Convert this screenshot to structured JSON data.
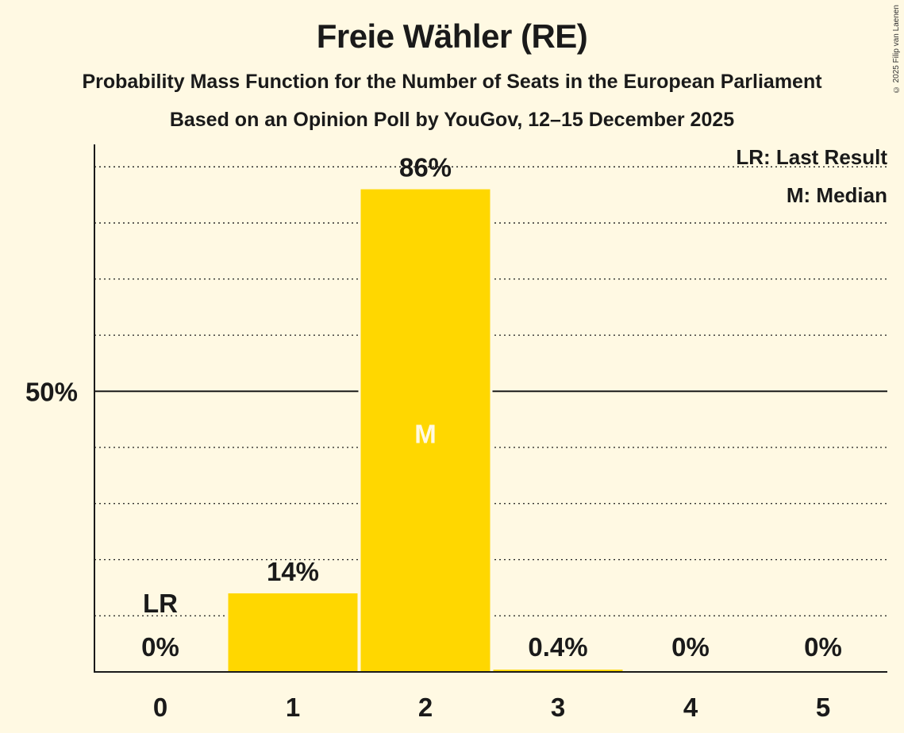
{
  "title": "Freie Wähler (RE)",
  "subtitle": "Probability Mass Function for the Number of Seats in the European Parliament",
  "subtitle2": "Based on an Opinion Poll by YouGov, 12–15 December 2025",
  "copyright": "© 2025 Filip van Laenen",
  "legend": {
    "lr": "LR: Last Result",
    "m": "M: Median"
  },
  "colors": {
    "bar": "#FFD700",
    "background": "#FFF9E3",
    "axis": "#1a1a1a",
    "median_text": "#FFF9E3"
  },
  "chart_data": {
    "type": "bar",
    "categories": [
      "0",
      "1",
      "2",
      "3",
      "4",
      "5"
    ],
    "values": [
      0,
      14,
      86,
      0.4,
      0,
      0
    ],
    "labels": [
      "0%",
      "14%",
      "86%",
      "0.4%",
      "0%",
      "0%"
    ],
    "ylim": [
      0,
      94
    ],
    "ytick_major": 50,
    "ytick_label": "50%",
    "grid_minor_step": 10,
    "last_result_category": "0",
    "last_result_label": "LR",
    "median_category": "2",
    "median_label": "M",
    "xlabel": "",
    "ylabel": ""
  }
}
